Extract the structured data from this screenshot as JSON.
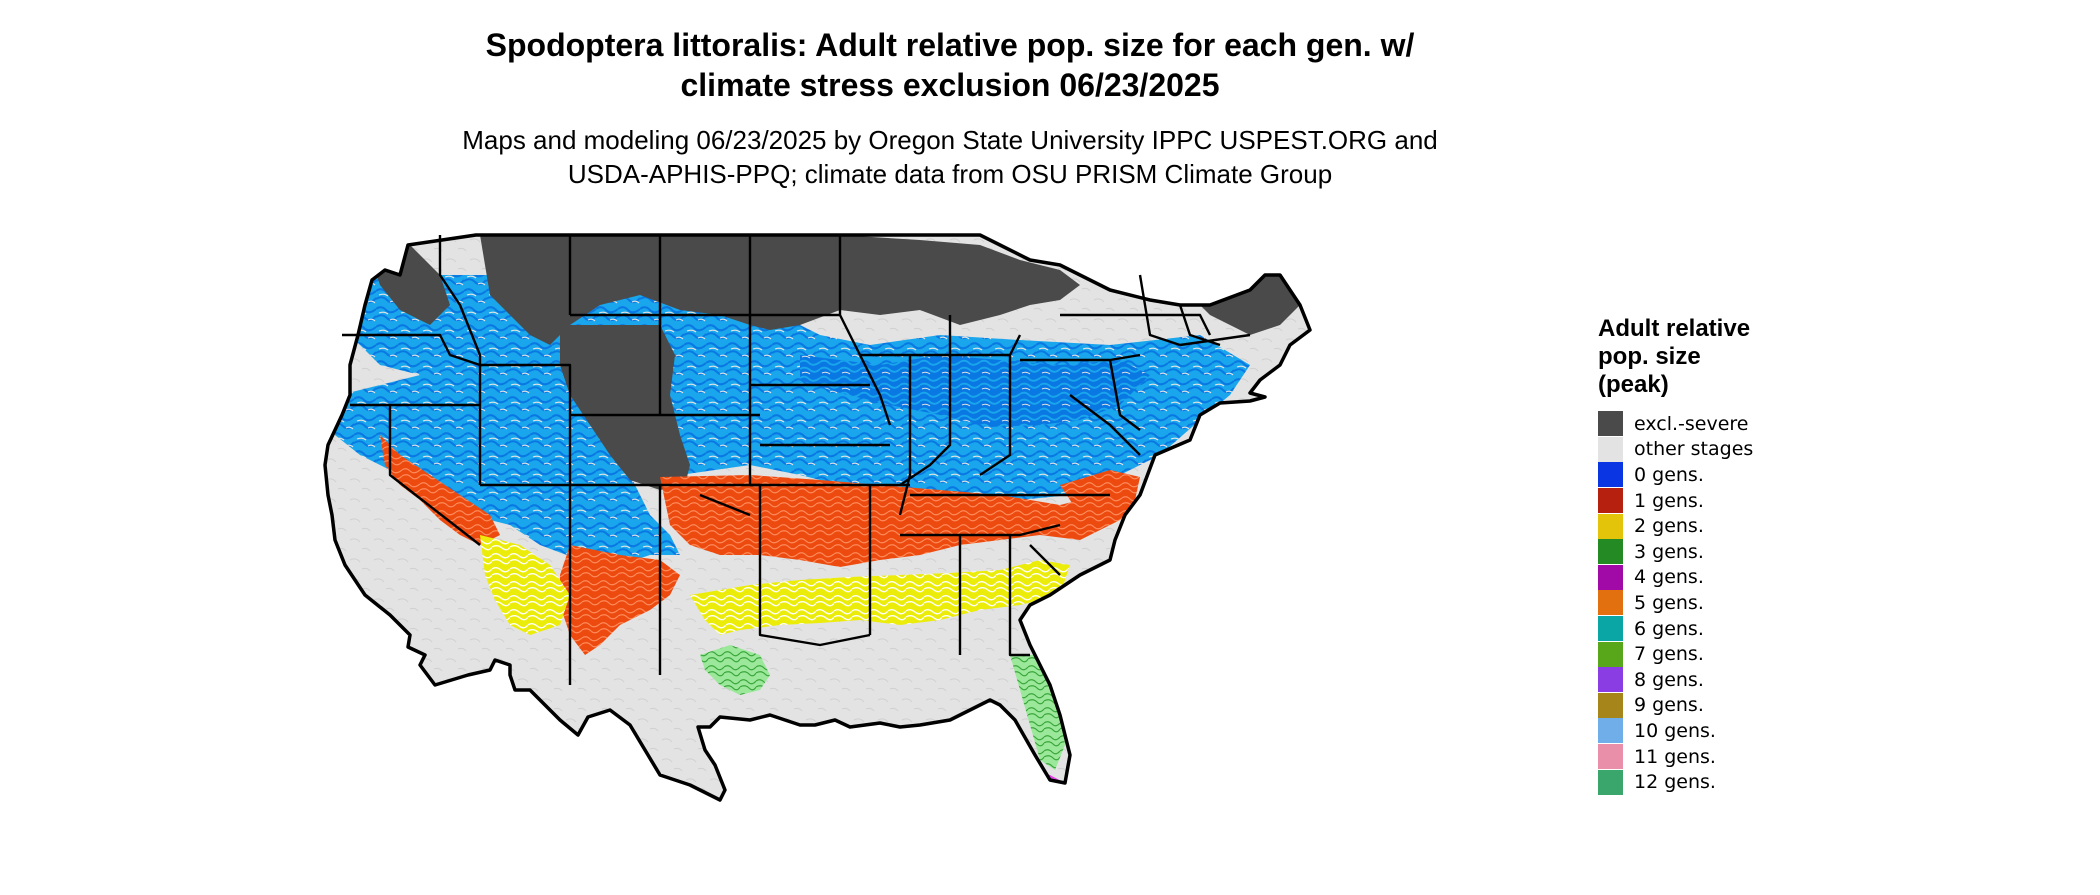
{
  "title_line1": "Spodoptera littoralis: Adult relative pop. size for each gen. w/",
  "title_line2": "climate stress exclusion 06/23/2025",
  "subtitle_line1": "Maps and modeling 06/23/2025 by Oregon State University IPPC USPEST.ORG and",
  "subtitle_line2": "USDA-APHIS-PPQ; climate data from OSU PRISM Climate Group",
  "legend": {
    "title": "Adult relative\npop. size\n(peak)",
    "items": [
      {
        "label": "excl.-severe",
        "color": "#4a4a4a"
      },
      {
        "label": "other stages",
        "color": "#e3e3e3"
      },
      {
        "label": "0 gens.",
        "color": "#0a35e3"
      },
      {
        "label": "1 gens.",
        "color": "#b5200f"
      },
      {
        "label": "2 gens.",
        "color": "#e3c40a"
      },
      {
        "label": "3 gens.",
        "color": "#248a24"
      },
      {
        "label": "4 gens.",
        "color": "#a10aa6"
      },
      {
        "label": "5 gens.",
        "color": "#e3700f"
      },
      {
        "label": "6 gens.",
        "color": "#0aa6a6"
      },
      {
        "label": "7 gens.",
        "color": "#58a61a"
      },
      {
        "label": "8 gens.",
        "color": "#8a3de3"
      },
      {
        "label": "9 gens.",
        "color": "#a6861a"
      },
      {
        "label": "10 gens.",
        "color": "#70aeea"
      },
      {
        "label": "11 gens.",
        "color": "#ea8faa"
      },
      {
        "label": "12 gens.",
        "color": "#3aa66c"
      }
    ]
  },
  "map_colors": {
    "excluded": "#4a4a4a",
    "other": "#e3e3e3",
    "blue_light": "#19a6ec",
    "blue_dark": "#0a78e3",
    "orange": "#ec4a0f",
    "yellow": "#ecec0a",
    "green": "#7ce07c",
    "magenta": "#e31ae3",
    "border": "#000000"
  }
}
